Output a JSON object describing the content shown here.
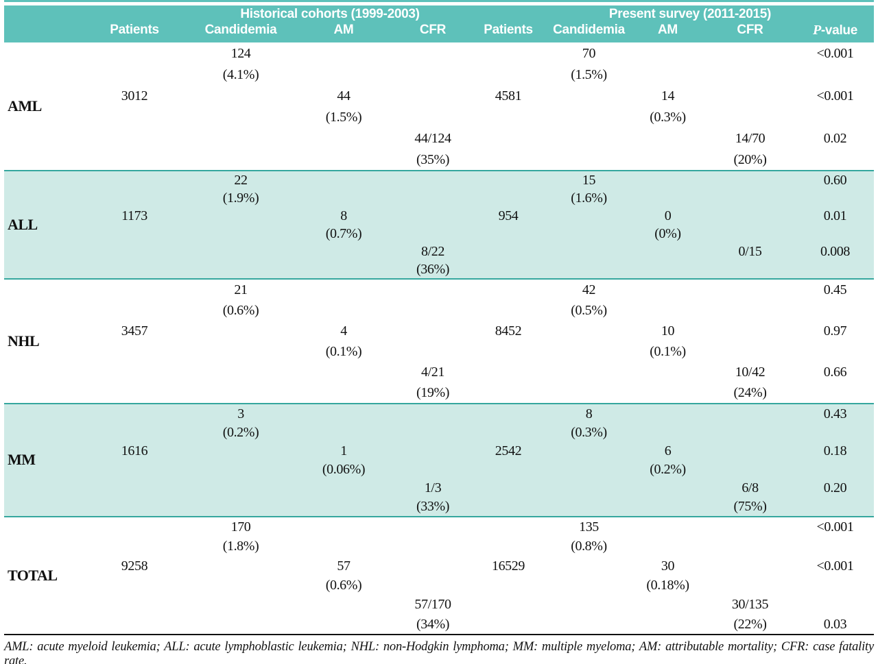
{
  "table": {
    "group_headers": [
      "Historical cohorts (1999-2003)",
      "Present survey (2011-2015)"
    ],
    "columns": [
      "Patients",
      "Candidemia",
      "AM",
      "CFR",
      "Patients",
      "Candidemia",
      "AM",
      "CFR"
    ],
    "pvalue_italic": "P",
    "pvalue_rest": "-value"
  },
  "rows": [
    {
      "label": "AML",
      "hist": {
        "patients": "3012",
        "candidemia_n": "124",
        "candidemia_pct": "(4.1%)",
        "am_n": "44",
        "am_pct": "(1.5%)",
        "cfr_n": "44/124",
        "cfr_pct": "(35%)"
      },
      "present": {
        "patients": "4581",
        "candidemia_n": "70",
        "candidemia_pct": "(1.5%)",
        "am_n": "14",
        "am_pct": "(0.3%)",
        "cfr_n": "14/70",
        "cfr_pct": "(20%)"
      },
      "p_candidemia": "<0.001",
      "p_am": "<0.001",
      "p_cfr": "0.02"
    },
    {
      "label": "ALL",
      "hist": {
        "patients": "1173",
        "candidemia_n": "22",
        "candidemia_pct": "(1.9%)",
        "am_n": "8",
        "am_pct": "(0.7%)",
        "cfr_n": "8/22",
        "cfr_pct": "(36%)"
      },
      "present": {
        "patients": "954",
        "candidemia_n": "15",
        "candidemia_pct": "(1.6%)",
        "am_n": "0",
        "am_pct": "(0%)",
        "cfr_n": "0/15",
        "cfr_pct": ""
      },
      "p_candidemia": "0.60",
      "p_am": "0.01",
      "p_cfr": "0.008"
    },
    {
      "label": "NHL",
      "hist": {
        "patients": "3457",
        "candidemia_n": "21",
        "candidemia_pct": "(0.6%)",
        "am_n": "4",
        "am_pct": "(0.1%)",
        "cfr_n": "4/21",
        "cfr_pct": "(19%)"
      },
      "present": {
        "patients": "8452",
        "candidemia_n": "42",
        "candidemia_pct": "(0.5%)",
        "am_n": "10",
        "am_pct": "(0.1%)",
        "cfr_n": "10/42",
        "cfr_pct": "(24%)"
      },
      "p_candidemia": "0.45",
      "p_am": "0.97",
      "p_cfr": "0.66"
    },
    {
      "label": "MM",
      "hist": {
        "patients": "1616",
        "candidemia_n": "3",
        "candidemia_pct": "(0.2%)",
        "am_n": "1",
        "am_pct": "(0.06%)",
        "cfr_n": "1/3",
        "cfr_pct": "(33%)"
      },
      "present": {
        "patients": "2542",
        "candidemia_n": "8",
        "candidemia_pct": "(0.3%)",
        "am_n": "6",
        "am_pct": "(0.2%)",
        "cfr_n": "6/8",
        "cfr_pct": "(75%)"
      },
      "p_candidemia": "0.43",
      "p_am": "0.18",
      "p_cfr": "0.20"
    },
    {
      "label": "TOTAL",
      "hist": {
        "patients": "9258",
        "candidemia_n": "170",
        "candidemia_pct": "(1.8%)",
        "am_n": "57",
        "am_pct": "(0.6%)",
        "cfr_n": "57/170",
        "cfr_pct": "(34%)"
      },
      "present": {
        "patients": "16529",
        "candidemia_n": "135",
        "candidemia_pct": "(0.8%)",
        "am_n": "30",
        "am_pct": "(0.18%)",
        "cfr_n": "30/135",
        "cfr_pct": "(22%)"
      },
      "p_candidemia": "<0.001",
      "p_am": "<0.001",
      "p_cfr": "0.03"
    }
  ],
  "footnote": "AML: acute myeloid leukemia; ALL: acute lymphoblastic leukemia; NHL: non-Hodgkin lymphoma; MM: multiple myeloma; AM: attributable mortality; CFR: case fatality rate.",
  "colors": {
    "header_teal": "#5ec1ba",
    "band_teal": "#cfeae6",
    "band_border": "#35a79e",
    "rule_black": "#111111"
  }
}
